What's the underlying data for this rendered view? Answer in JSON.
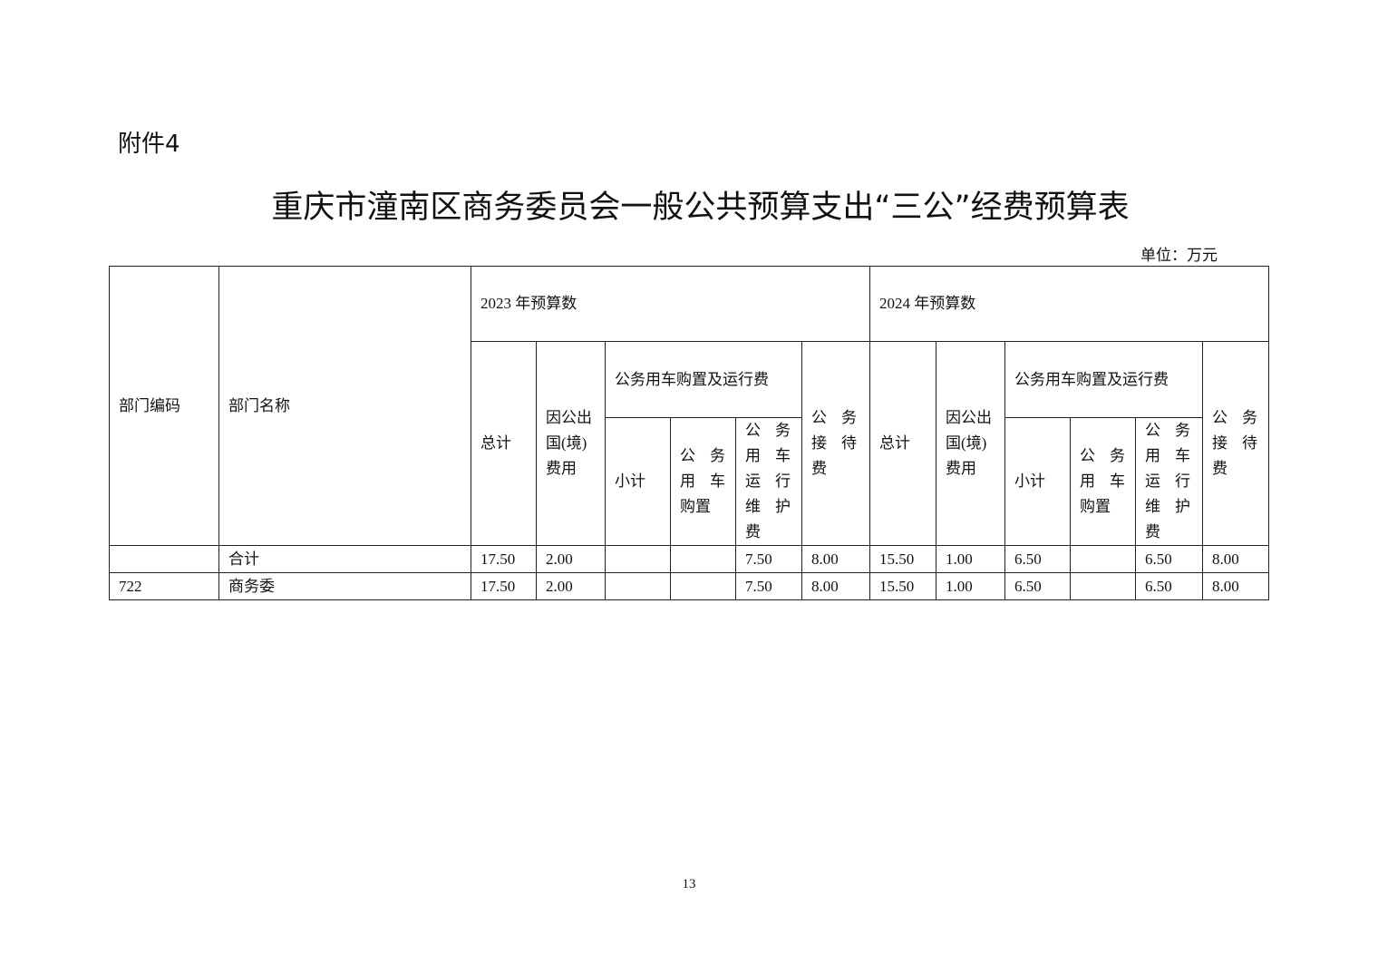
{
  "attachment": "附件4",
  "title": "重庆市潼南区商务委员会一般公共预算支出“三公”经费预算表",
  "unit": "单位：万元",
  "headers": {
    "dept_code": "部门编码",
    "dept_name": "部门名称",
    "y2023": "2023 年预算数",
    "y2024": "2024 年预算数",
    "total": "总计",
    "abroad": "因公出国(境)费用",
    "car_group": "公务用车购置及运行费",
    "subtotal": "小计",
    "car_purchase": "公务用车购置",
    "car_run": "公务用车运行维护费",
    "reception": "公务接待费"
  },
  "rows": [
    {
      "code": "",
      "name": "合计",
      "v": [
        "17.50",
        "2.00",
        "",
        "",
        "7.50",
        "8.00",
        "15.50",
        "1.00",
        "6.50",
        "",
        "6.50",
        "8.00"
      ]
    },
    {
      "code": "722",
      "name": "商务委",
      "v": [
        "17.50",
        "2.00",
        "",
        "",
        "7.50",
        "8.00",
        "15.50",
        "1.00",
        "6.50",
        "",
        "6.50",
        "8.00"
      ]
    }
  ],
  "page_number": "13"
}
